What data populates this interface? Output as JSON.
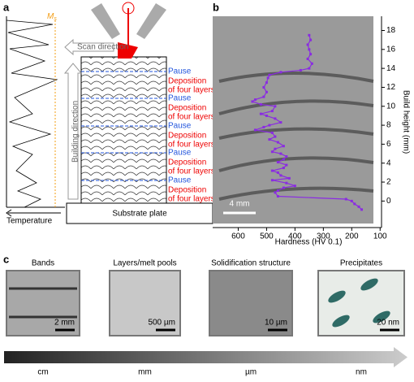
{
  "panel_a": {
    "label": "a",
    "ms": "M",
    "ms_sub": "s",
    "temperature": "Temperature",
    "scan_direction": "Scan direction",
    "building_direction": "Building direction",
    "steps": [
      {
        "pause": "Pause",
        "deposition": [
          "Deposition",
          "of four layers"
        ]
      },
      {
        "pause": "Pause",
        "deposition": [
          "Deposition",
          "of four layers"
        ]
      },
      {
        "pause": "Pause",
        "deposition": [
          "Deposition",
          "of four layers"
        ]
      },
      {
        "pause": "Pause",
        "deposition": [
          "Deposition",
          "of four layers"
        ]
      },
      {
        "pause": "Pause",
        "deposition": [
          "Deposition",
          "of four layers"
        ]
      }
    ],
    "substrate": "Substrate plate"
  },
  "chart_data": {
    "type": "line",
    "label": "b",
    "scale_bar": "4 mm",
    "xlabel": "Hardness (HV 0.1)",
    "ylabel": "Build height (mm)",
    "xlim": [
      690,
      95
    ],
    "ylim": [
      -2.8,
      19.5
    ],
    "xticks": [
      600,
      500,
      400,
      300,
      200,
      100
    ],
    "yticks": [
      0,
      2,
      4,
      6,
      8,
      10,
      12,
      14,
      16,
      18
    ],
    "series": [
      {
        "color": "#8a2be2",
        "x": [
          350,
          345,
          355,
          350,
          345,
          355,
          340,
          350,
          380,
          450,
          490,
          495,
          500,
          510,
          500,
          510,
          540,
          550,
          520,
          470,
          480,
          520,
          500,
          470,
          450,
          490,
          510,
          540,
          480,
          470,
          490,
          460,
          440,
          470,
          480,
          450,
          430,
          440,
          460,
          430,
          440,
          480,
          460,
          450,
          420,
          480,
          430,
          400,
          440,
          460,
          470,
          460,
          220,
          200,
          190,
          175,
          165
        ],
        "values": [
          17.5,
          17,
          16.5,
          16,
          15.5,
          15,
          14.5,
          14,
          13.8,
          13.6,
          13.3,
          13,
          12.5,
          12,
          11.5,
          11,
          10.7,
          10.5,
          10.2,
          10,
          9.5,
          9.2,
          9,
          8.7,
          8.3,
          8,
          7.8,
          7.5,
          7.2,
          6.8,
          6.5,
          6.2,
          5.8,
          5.5,
          5.2,
          5,
          4.7,
          4.4,
          4.1,
          3.8,
          3.5,
          3.2,
          3,
          2.7,
          2.4,
          2.2,
          1.9,
          1.6,
          1.4,
          1.1,
          0.9,
          0.5,
          0.2,
          0,
          -0.3,
          -0.6,
          -0.9
        ]
      }
    ]
  },
  "panel_c": {
    "label": "c",
    "images": [
      {
        "title": "Bands",
        "scale": "2 mm"
      },
      {
        "title": "Layers/melt pools",
        "scale": "500 µm"
      },
      {
        "title": "Solidification structure",
        "scale": "10 µm"
      },
      {
        "title": "Precipitates",
        "scale": "20 nm"
      }
    ],
    "length_scale": [
      "cm",
      "mm",
      "µm",
      "nm"
    ]
  }
}
